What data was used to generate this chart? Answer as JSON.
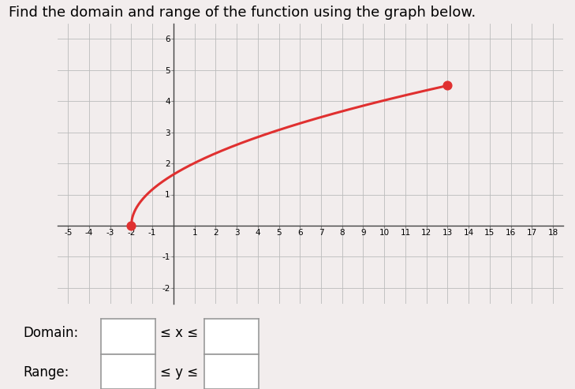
{
  "title": "Find the domain and range of the function using the graph below.",
  "x_start": -2,
  "x_end": 13,
  "y_start": 0,
  "y_end": 4.5,
  "curve_color": "#e03030",
  "dot_color": "#e03030",
  "dot_size": 60,
  "xlim": [
    -5.5,
    18.5
  ],
  "ylim": [
    -2.5,
    6.5
  ],
  "xticks": [
    -5,
    -4,
    -3,
    -2,
    -1,
    1,
    2,
    3,
    4,
    5,
    6,
    7,
    8,
    9,
    10,
    11,
    12,
    13,
    14,
    15,
    16,
    17,
    18
  ],
  "yticks": [
    -2,
    -1,
    1,
    2,
    3,
    4,
    5,
    6
  ],
  "grid_color": "#bbbbbb",
  "bg_color": "#f2eded",
  "domain_label": "Domain:",
  "range_label": "Range:",
  "leq_x": "≤ x ≤",
  "leq_y": "≤ y ≤"
}
